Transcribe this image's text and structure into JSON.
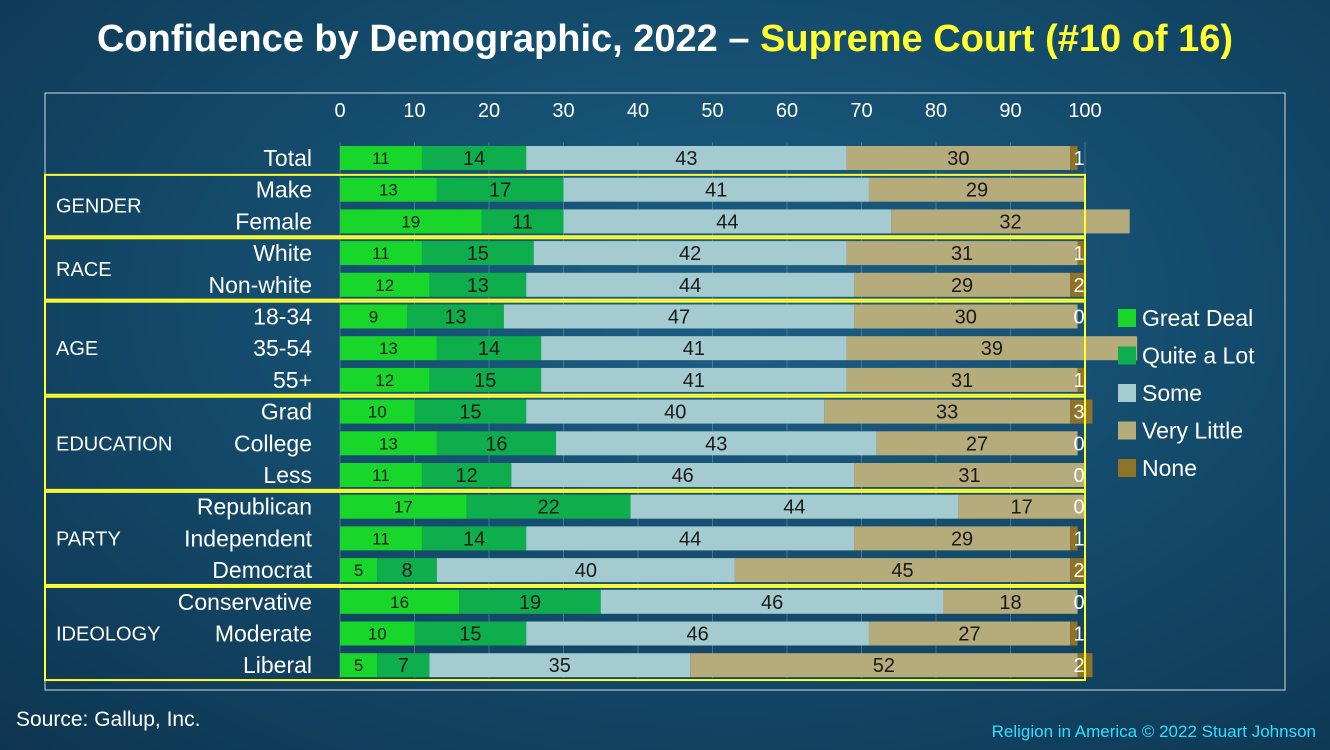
{
  "title": {
    "main": "Confidence by Demographic, 2022 –",
    "highlight": "Supreme Court (#10 of 16)"
  },
  "source": "Source: Gallup, Inc.",
  "credit": "Religion in America © 2022 Stuart Johnson",
  "colors": {
    "great_deal": "#19d62a",
    "quite_a_lot": "#0fae4c",
    "some": "#a3cbd0",
    "very_little": "#b6ab7a",
    "none": "#8f7328",
    "group_box": "#ffff33",
    "highlight": "#ffff33",
    "credit": "#33ddff"
  },
  "chart_data": {
    "type": "bar",
    "orientation": "horizontal",
    "stacked": true,
    "xlim": [
      0,
      100
    ],
    "xticks": [
      0,
      10,
      20,
      30,
      40,
      50,
      60,
      70,
      80,
      90,
      100
    ],
    "legend_position": "right",
    "series": [
      {
        "name": "Great Deal",
        "color_key": "great_deal"
      },
      {
        "name": "Quite a Lot",
        "color_key": "quite_a_lot"
      },
      {
        "name": "Some",
        "color_key": "some"
      },
      {
        "name": "Very Little",
        "color_key": "very_little"
      },
      {
        "name": "None",
        "color_key": "none"
      }
    ],
    "groups": [
      {
        "name": "",
        "rows": [
          {
            "label": "Total",
            "values": [
              11,
              14,
              43,
              30,
              1
            ]
          }
        ]
      },
      {
        "name": "GENDER",
        "rows": [
          {
            "label": "Make",
            "values": [
              13,
              17,
              41,
              29,
              0
            ],
            "hide_last": true
          },
          {
            "label": "Female",
            "values": [
              19,
              11,
              44,
              32,
              0
            ],
            "hide_last": true
          }
        ]
      },
      {
        "name": "RACE",
        "rows": [
          {
            "label": "White",
            "values": [
              11,
              15,
              42,
              31,
              1
            ]
          },
          {
            "label": "Non-white",
            "values": [
              12,
              13,
              44,
              29,
              2
            ]
          }
        ]
      },
      {
        "name": "AGE",
        "rows": [
          {
            "label": "18-34",
            "values": [
              9,
              13,
              47,
              30,
              0
            ]
          },
          {
            "label": "35-54",
            "values": [
              13,
              14,
              41,
              39,
              0
            ],
            "hide_last": true
          },
          {
            "label": "55+",
            "values": [
              12,
              15,
              41,
              31,
              1
            ]
          }
        ]
      },
      {
        "name": "EDUCATION",
        "rows": [
          {
            "label": "Grad",
            "values": [
              10,
              15,
              40,
              33,
              3
            ]
          },
          {
            "label": "College",
            "values": [
              13,
              16,
              43,
              27,
              0
            ]
          },
          {
            "label": "Less",
            "values": [
              11,
              12,
              46,
              31,
              0
            ]
          }
        ]
      },
      {
        "name": "PARTY",
        "rows": [
          {
            "label": "Republican",
            "values": [
              17,
              22,
              44,
              17,
              0
            ]
          },
          {
            "label": "Independent",
            "values": [
              11,
              14,
              44,
              29,
              1
            ]
          },
          {
            "label": "Democrat",
            "values": [
              5,
              8,
              40,
              45,
              2
            ]
          }
        ]
      },
      {
        "name": "IDEOLOGY",
        "rows": [
          {
            "label": "Conservative",
            "values": [
              16,
              19,
              46,
              18,
              0
            ]
          },
          {
            "label": "Moderate",
            "values": [
              10,
              15,
              46,
              27,
              1
            ]
          },
          {
            "label": "Liberal",
            "values": [
              5,
              7,
              35,
              52,
              2
            ]
          }
        ]
      }
    ]
  }
}
